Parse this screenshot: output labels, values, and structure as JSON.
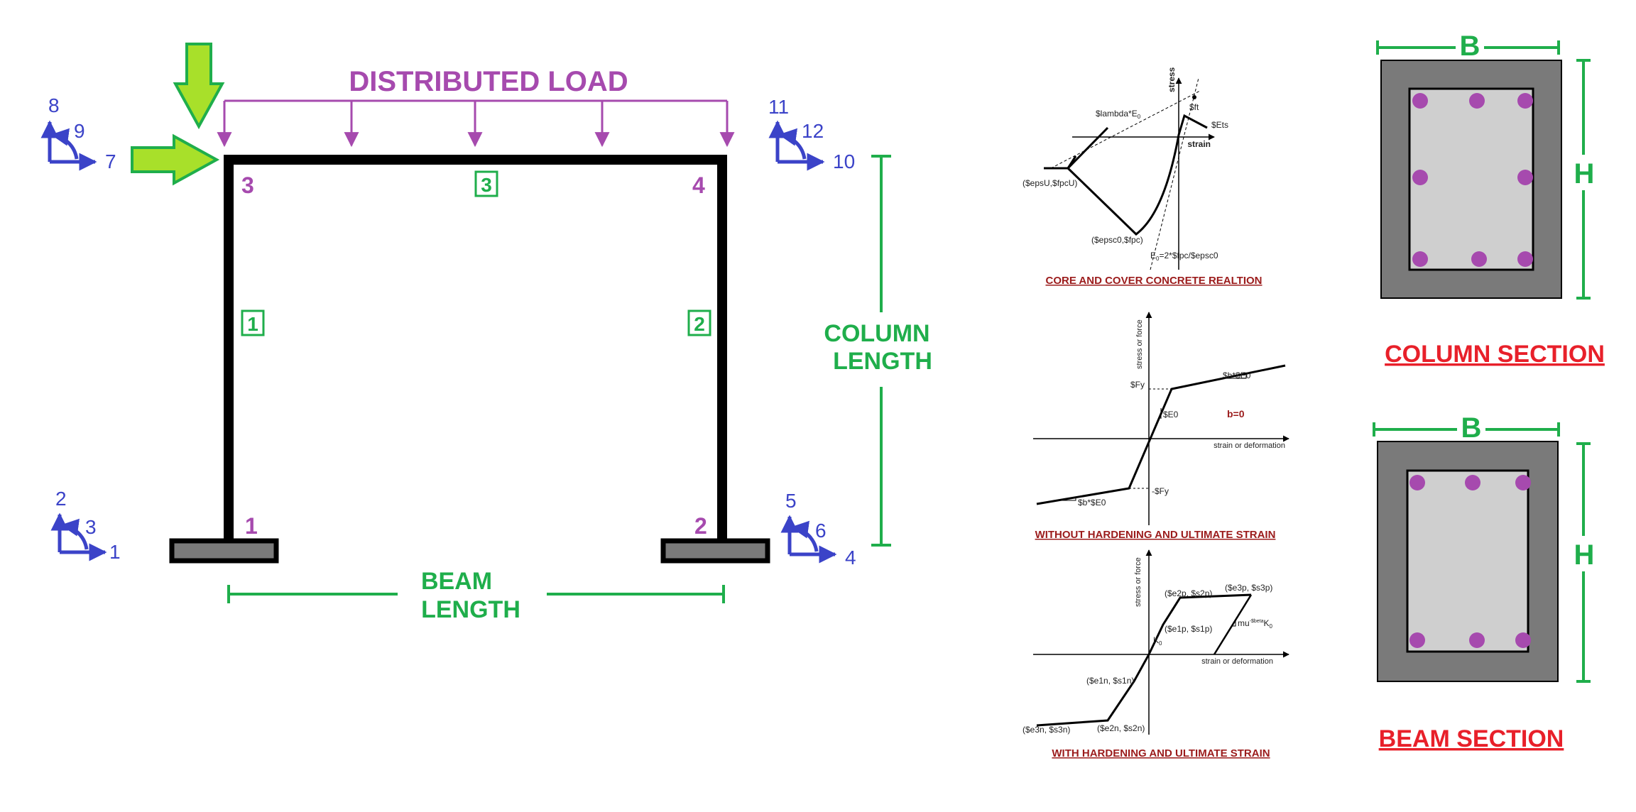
{
  "colors": {
    "frame": "#000000",
    "load": "#a64aae",
    "dimension": "#1fae4b",
    "dof": "#3b43c8",
    "arrow_fill": "#a8e02a",
    "arrow_stroke": "#1fae4b",
    "section_cover": "#7a7a7a",
    "section_core": "#cfcfcf",
    "rebar": "#a64aae",
    "title_red": "#e8202a",
    "caption_dark_red": "#9b1b1b"
  },
  "frame": {
    "load_label": "DISTRIBUTED LOAD",
    "node_labels": [
      "1",
      "2",
      "3",
      "4"
    ],
    "element_labels": [
      "1",
      "2",
      "3"
    ],
    "column_length_label": [
      "COLUMN",
      "LENGTH"
    ],
    "beam_length_label": [
      "BEAM",
      "LENGTH"
    ],
    "dof": {
      "node1": [
        "1",
        "2",
        "3"
      ],
      "node2": [
        "4",
        "5",
        "6"
      ],
      "node3": [
        "7",
        "8",
        "9"
      ],
      "node4": [
        "10",
        "11",
        "12"
      ]
    }
  },
  "materials": {
    "concrete": {
      "caption": "CORE AND COVER CONCRETE REALTION",
      "y_axis": "stress",
      "x_axis": "strain",
      "labels": {
        "lambda": "$lambda*E",
        "lambda_sub": "0",
        "ft": "$ft",
        "ets": "$Ets",
        "epsu": "($epsU,$fpcU)",
        "epsc0": "($epsc0,$fpc)",
        "e0_prefix": "E",
        "e0_sub": "0",
        "e0_suffix": "=2*$fpc/$epsc0"
      }
    },
    "steel_no_hardening": {
      "caption": "WITHOUT HARDENING AND ULTIMATE STRAIN",
      "y_axis": "stress or force",
      "x_axis": "strain or deformation",
      "labels": {
        "fy": "$Fy",
        "neg_fy": "-$Fy",
        "e0": "$E0",
        "b_top": "$b*$E0",
        "b_bottom": "$b*$E0",
        "b_eq": "b=0"
      }
    },
    "steel_hardening": {
      "caption": "WITH HARDENING AND ULTIMATE STRAIN",
      "y_axis": "stress or force",
      "x_axis": "strain or deformation",
      "labels": {
        "p1": "($e1p, $s1p)",
        "p2": "($e2p, $s2p)",
        "p3": "($e3p, $s3p)",
        "n1": "($e1n, $s1n)",
        "n2": "($e2n, $s2n)",
        "n3": "($e3n, $s3n)",
        "k0": "K",
        "k0_sub": "0",
        "mu": "mu",
        "mu_sup": "-$beta",
        "mu_k": "K",
        "mu_k_sub": "0"
      }
    }
  },
  "sections": {
    "column": {
      "title": "COLUMN SECTION",
      "width_label": "B",
      "height_label": "H"
    },
    "beam": {
      "title": "BEAM SECTION",
      "width_label": "B",
      "height_label": "H"
    }
  }
}
